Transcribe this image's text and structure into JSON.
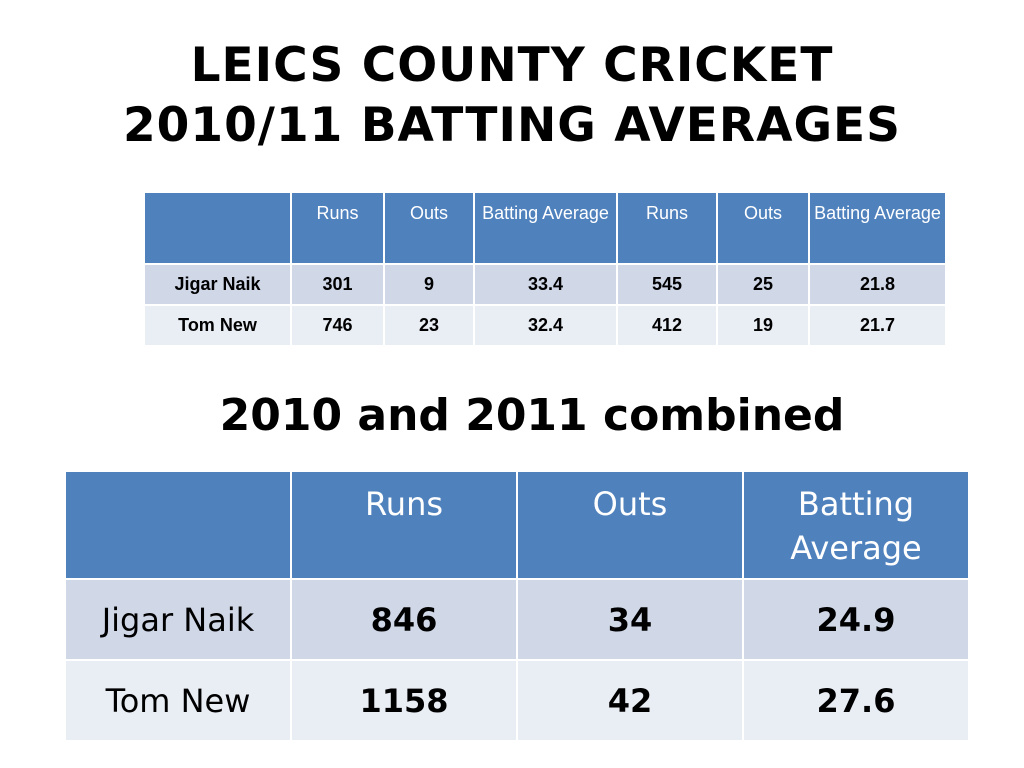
{
  "title": {
    "line1": "LEICS COUNTY CRICKET",
    "line2": "2010/11 BATTING AVERAGES"
  },
  "table_yearly": {
    "headers": [
      "",
      "Runs",
      "Outs",
      "Batting Average",
      "Runs",
      "Outs",
      "Batting Average"
    ],
    "rows": [
      [
        "Jigar Naik",
        "301",
        "9",
        "33.4",
        "545",
        "25",
        "21.8"
      ],
      [
        "Tom New",
        "746",
        "23",
        "32.4",
        "412",
        "19",
        "21.7"
      ]
    ]
  },
  "subtitle": "2010 and 2011 combined",
  "table_combined": {
    "headers": [
      "",
      "Runs",
      "Outs",
      "Batting Average"
    ],
    "rows": [
      [
        "Jigar Naik",
        "846",
        "34",
        "24.9"
      ],
      [
        "Tom New",
        "1158",
        "42",
        "27.6"
      ]
    ]
  },
  "colors": {
    "header_bg": "#4f81bd",
    "row_odd_bg": "#d0d8e8",
    "row_even_bg": "#e9edf4",
    "header_text": "#ffffff"
  }
}
